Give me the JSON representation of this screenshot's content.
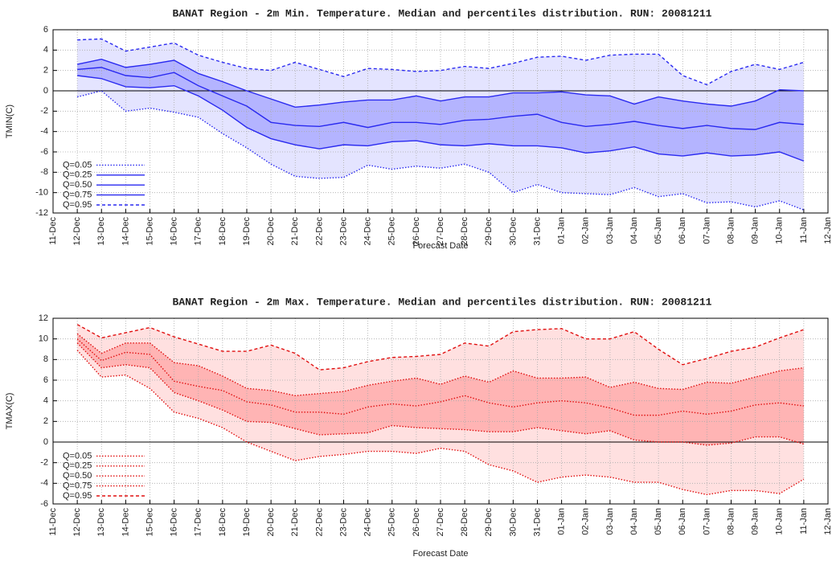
{
  "chart_data": [
    {
      "type": "band-line",
      "title": "BANAT   Region - 2m Min. Temperature.  Median and percentiles distribution. RUN: 20081211",
      "x_label": "Forecast Date",
      "y_label": "TMIN(C)",
      "categories": [
        "11-Dec",
        "12-Dec",
        "13-Dec",
        "14-Dec",
        "15-Dec",
        "16-Dec",
        "17-Dec",
        "18-Dec",
        "19-Dec",
        "20-Dec",
        "21-Dec",
        "22-Dec",
        "23-Dec",
        "24-Dec",
        "25-Dec",
        "26-Dec",
        "27-Dec",
        "28-Dec",
        "29-Dec",
        "30-Dec",
        "31-Dec",
        "01-Jan",
        "02-Jan",
        "03-Jan",
        "04-Jan",
        "05-Jan",
        "06-Jan",
        "07-Jan",
        "08-Jan",
        "09-Jan",
        "10-Jan",
        "11-Jan",
        "12-Jan"
      ],
      "ylim": [
        -12,
        6
      ],
      "yticks": [
        -12,
        -10,
        -8,
        -6,
        -4,
        -2,
        0,
        2,
        4,
        6
      ],
      "grid": true,
      "legend": "lower left",
      "fill_colors": [
        "#e4e4ff",
        "#b4b4ff"
      ],
      "series": [
        {
          "name": "Q=0.05",
          "color": "#2a2af0",
          "line_style": "dotted",
          "values": [
            null,
            -0.6,
            0.0,
            -2.0,
            -1.7,
            -2.1,
            -2.6,
            -4.2,
            -5.6,
            -7.2,
            -8.4,
            -8.6,
            -8.5,
            -7.3,
            -7.7,
            -7.4,
            -7.6,
            -7.2,
            -8.0,
            -10.0,
            -9.2,
            -10.0,
            -10.1,
            -10.2,
            -9.5,
            -10.4,
            -10.1,
            -11.0,
            -10.9,
            -11.4,
            -10.8,
            -11.7,
            null
          ]
        },
        {
          "name": "Q=0.25",
          "color": "#2a2af0",
          "line_style": "solid",
          "values": [
            null,
            1.5,
            1.2,
            0.4,
            0.3,
            0.5,
            -0.5,
            -1.9,
            -3.6,
            -4.7,
            -5.3,
            -5.7,
            -5.3,
            -5.4,
            -5.0,
            -4.9,
            -5.3,
            -5.4,
            -5.2,
            -5.4,
            -5.4,
            -5.6,
            -6.1,
            -5.9,
            -5.5,
            -6.2,
            -6.4,
            -6.1,
            -6.4,
            -6.3,
            -6.0,
            -6.9,
            null
          ]
        },
        {
          "name": "Q=0.50",
          "color": "#2a2af0",
          "line_style": "solid",
          "values": [
            null,
            2.1,
            2.3,
            1.5,
            1.3,
            1.8,
            0.5,
            -0.5,
            -1.5,
            -3.1,
            -3.4,
            -3.5,
            -3.1,
            -3.6,
            -3.1,
            -3.1,
            -3.3,
            -2.9,
            -2.8,
            -2.5,
            -2.3,
            -3.1,
            -3.5,
            -3.3,
            -3.0,
            -3.4,
            -3.7,
            -3.4,
            -3.7,
            -3.8,
            -3.1,
            -3.3,
            null
          ]
        },
        {
          "name": "Q=0.75",
          "color": "#2a2af0",
          "line_style": "solid",
          "values": [
            null,
            2.6,
            3.1,
            2.3,
            2.6,
            3.0,
            1.7,
            0.9,
            0.0,
            -0.8,
            -1.6,
            -1.4,
            -1.1,
            -0.9,
            -0.9,
            -0.5,
            -1.0,
            -0.6,
            -0.6,
            -0.2,
            -0.2,
            -0.1,
            -0.4,
            -0.5,
            -1.3,
            -0.6,
            -1.0,
            -1.3,
            -1.5,
            -1.0,
            0.1,
            0.0,
            null
          ]
        },
        {
          "name": "Q=0.95",
          "color": "#2a2af0",
          "line_style": "dashed",
          "values": [
            null,
            5.0,
            5.1,
            3.9,
            4.3,
            4.7,
            3.5,
            2.8,
            2.2,
            2.0,
            2.8,
            2.1,
            1.4,
            2.2,
            2.1,
            1.9,
            2.0,
            2.4,
            2.2,
            2.7,
            3.3,
            3.4,
            3.0,
            3.5,
            3.6,
            3.6,
            1.5,
            0.6,
            1.9,
            2.6,
            2.1,
            2.8,
            null
          ]
        }
      ]
    },
    {
      "type": "band-line",
      "title": "BANAT   Region - 2m Max. Temperature.  Median and percentiles distribution. RUN: 20081211",
      "x_label": "Forecast Date",
      "y_label": "TMAX(C)",
      "categories": [
        "11-Dec",
        "12-Dec",
        "13-Dec",
        "14-Dec",
        "15-Dec",
        "16-Dec",
        "17-Dec",
        "18-Dec",
        "19-Dec",
        "20-Dec",
        "21-Dec",
        "22-Dec",
        "23-Dec",
        "24-Dec",
        "25-Dec",
        "26-Dec",
        "27-Dec",
        "28-Dec",
        "29-Dec",
        "30-Dec",
        "31-Dec",
        "01-Jan",
        "02-Jan",
        "03-Jan",
        "04-Jan",
        "05-Jan",
        "06-Jan",
        "07-Jan",
        "08-Jan",
        "09-Jan",
        "10-Jan",
        "11-Jan",
        "12-Jan"
      ],
      "ylim": [
        -6,
        12
      ],
      "yticks": [
        -6,
        -4,
        -2,
        0,
        2,
        4,
        6,
        8,
        10,
        12
      ],
      "grid": true,
      "legend": "lower left",
      "fill_colors": [
        "#ffe0e0",
        "#ffb4b4"
      ],
      "series": [
        {
          "name": "Q=0.05",
          "color": "#e01010",
          "line_style": "dotted",
          "values": [
            null,
            8.9,
            6.3,
            6.5,
            5.2,
            2.9,
            2.3,
            1.4,
            0.0,
            -0.9,
            -1.8,
            -1.4,
            -1.2,
            -0.9,
            -0.9,
            -1.1,
            -0.6,
            -0.9,
            -2.2,
            -2.8,
            -3.9,
            -3.4,
            -3.2,
            -3.4,
            -3.9,
            -3.9,
            -4.6,
            -5.1,
            -4.7,
            -4.7,
            -5.0,
            -3.6,
            null
          ]
        },
        {
          "name": "Q=0.25",
          "color": "#e01010",
          "line_style": "dotted",
          "values": [
            null,
            9.6,
            7.2,
            7.5,
            7.2,
            4.8,
            4.0,
            3.1,
            2.0,
            1.9,
            1.3,
            0.7,
            0.8,
            0.9,
            1.6,
            1.4,
            1.3,
            1.2,
            1.0,
            1.0,
            1.4,
            1.1,
            0.8,
            1.1,
            0.2,
            0.0,
            0.0,
            -0.3,
            -0.1,
            0.5,
            0.5,
            -0.2,
            null
          ]
        },
        {
          "name": "Q=0.50",
          "color": "#e01010",
          "line_style": "dotted",
          "values": [
            null,
            10.0,
            7.9,
            8.7,
            8.5,
            5.9,
            5.4,
            5.0,
            3.9,
            3.6,
            2.9,
            2.9,
            2.7,
            3.4,
            3.7,
            3.5,
            3.9,
            4.5,
            3.8,
            3.4,
            3.8,
            4.0,
            3.8,
            3.3,
            2.6,
            2.6,
            3.0,
            2.7,
            3.0,
            3.6,
            3.8,
            3.5,
            null
          ]
        },
        {
          "name": "Q=0.75",
          "color": "#e01010",
          "line_style": "dotted",
          "values": [
            null,
            10.5,
            8.6,
            9.6,
            9.6,
            7.7,
            7.4,
            6.4,
            5.2,
            5.0,
            4.5,
            4.7,
            4.9,
            5.5,
            5.9,
            6.2,
            5.6,
            6.4,
            5.8,
            6.9,
            6.2,
            6.2,
            6.3,
            5.3,
            5.8,
            5.2,
            5.1,
            5.8,
            5.7,
            6.3,
            6.9,
            7.2,
            null
          ]
        },
        {
          "name": "Q=0.95",
          "color": "#e01010",
          "line_style": "dashed",
          "values": [
            null,
            11.4,
            10.1,
            10.6,
            11.1,
            10.2,
            9.5,
            8.8,
            8.8,
            9.4,
            8.6,
            7.0,
            7.2,
            7.8,
            8.2,
            8.3,
            8.5,
            9.6,
            9.3,
            10.7,
            10.9,
            11.0,
            10.0,
            10.0,
            10.7,
            9.0,
            7.5,
            8.1,
            8.8,
            9.2,
            10.1,
            10.9,
            null
          ]
        }
      ]
    }
  ]
}
